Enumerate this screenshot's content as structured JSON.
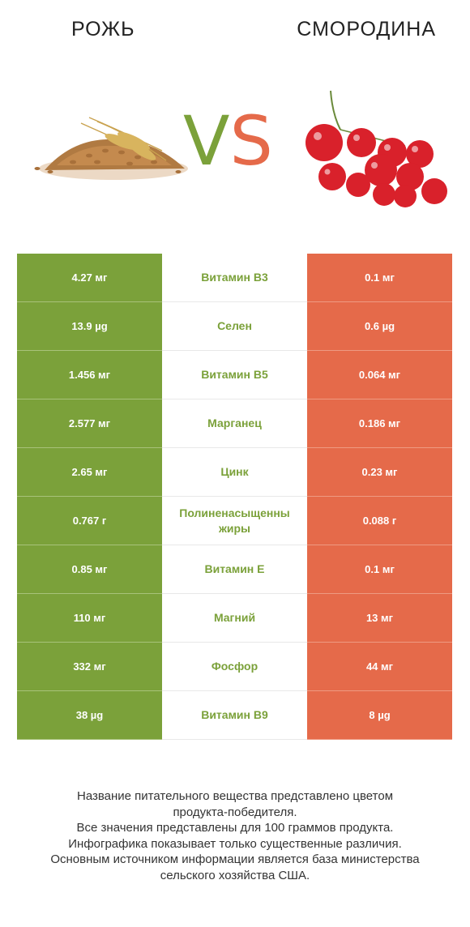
{
  "header": {
    "left_title": "РОЖЬ",
    "right_title": "СМОРОДИНА"
  },
  "vs": {
    "v": "V",
    "s": "S"
  },
  "colors": {
    "winner_left": "#7ba13a",
    "winner_right": "#e56a4a"
  },
  "rows": [
    {
      "left": "4.27 мг",
      "name": "Витамин B3",
      "right": "0.1 мг"
    },
    {
      "left": "13.9 µg",
      "name": "Селен",
      "right": "0.6 µg"
    },
    {
      "left": "1.456 мг",
      "name": "Витамин B5",
      "right": "0.064 мг"
    },
    {
      "left": "2.577 мг",
      "name": "Марганец",
      "right": "0.186 мг"
    },
    {
      "left": "2.65 мг",
      "name": "Цинк",
      "right": "0.23 мг"
    },
    {
      "left": "0.767 г",
      "name_line1": "Полиненасыщенны",
      "name_line2": "жиры",
      "right": "0.088 г"
    },
    {
      "left": "0.85 мг",
      "name": "Витамин E",
      "right": "0.1 мг"
    },
    {
      "left": "110 мг",
      "name": "Магний",
      "right": "13 мг"
    },
    {
      "left": "332 мг",
      "name": "Фосфор",
      "right": "44 мг"
    },
    {
      "left": "38 µg",
      "name": "Витамин B9",
      "right": "8 µg"
    }
  ],
  "footer": {
    "line1": "Название питательного вещества представлено цветом",
    "line2": "продукта-победителя.",
    "line3": "Все значения представлены для 100 граммов продукта.",
    "line4": "Инфографика показывает только существенные различия.",
    "line5": "Основным источником информации является база министерства",
    "line6": "сельского хозяйства США."
  }
}
